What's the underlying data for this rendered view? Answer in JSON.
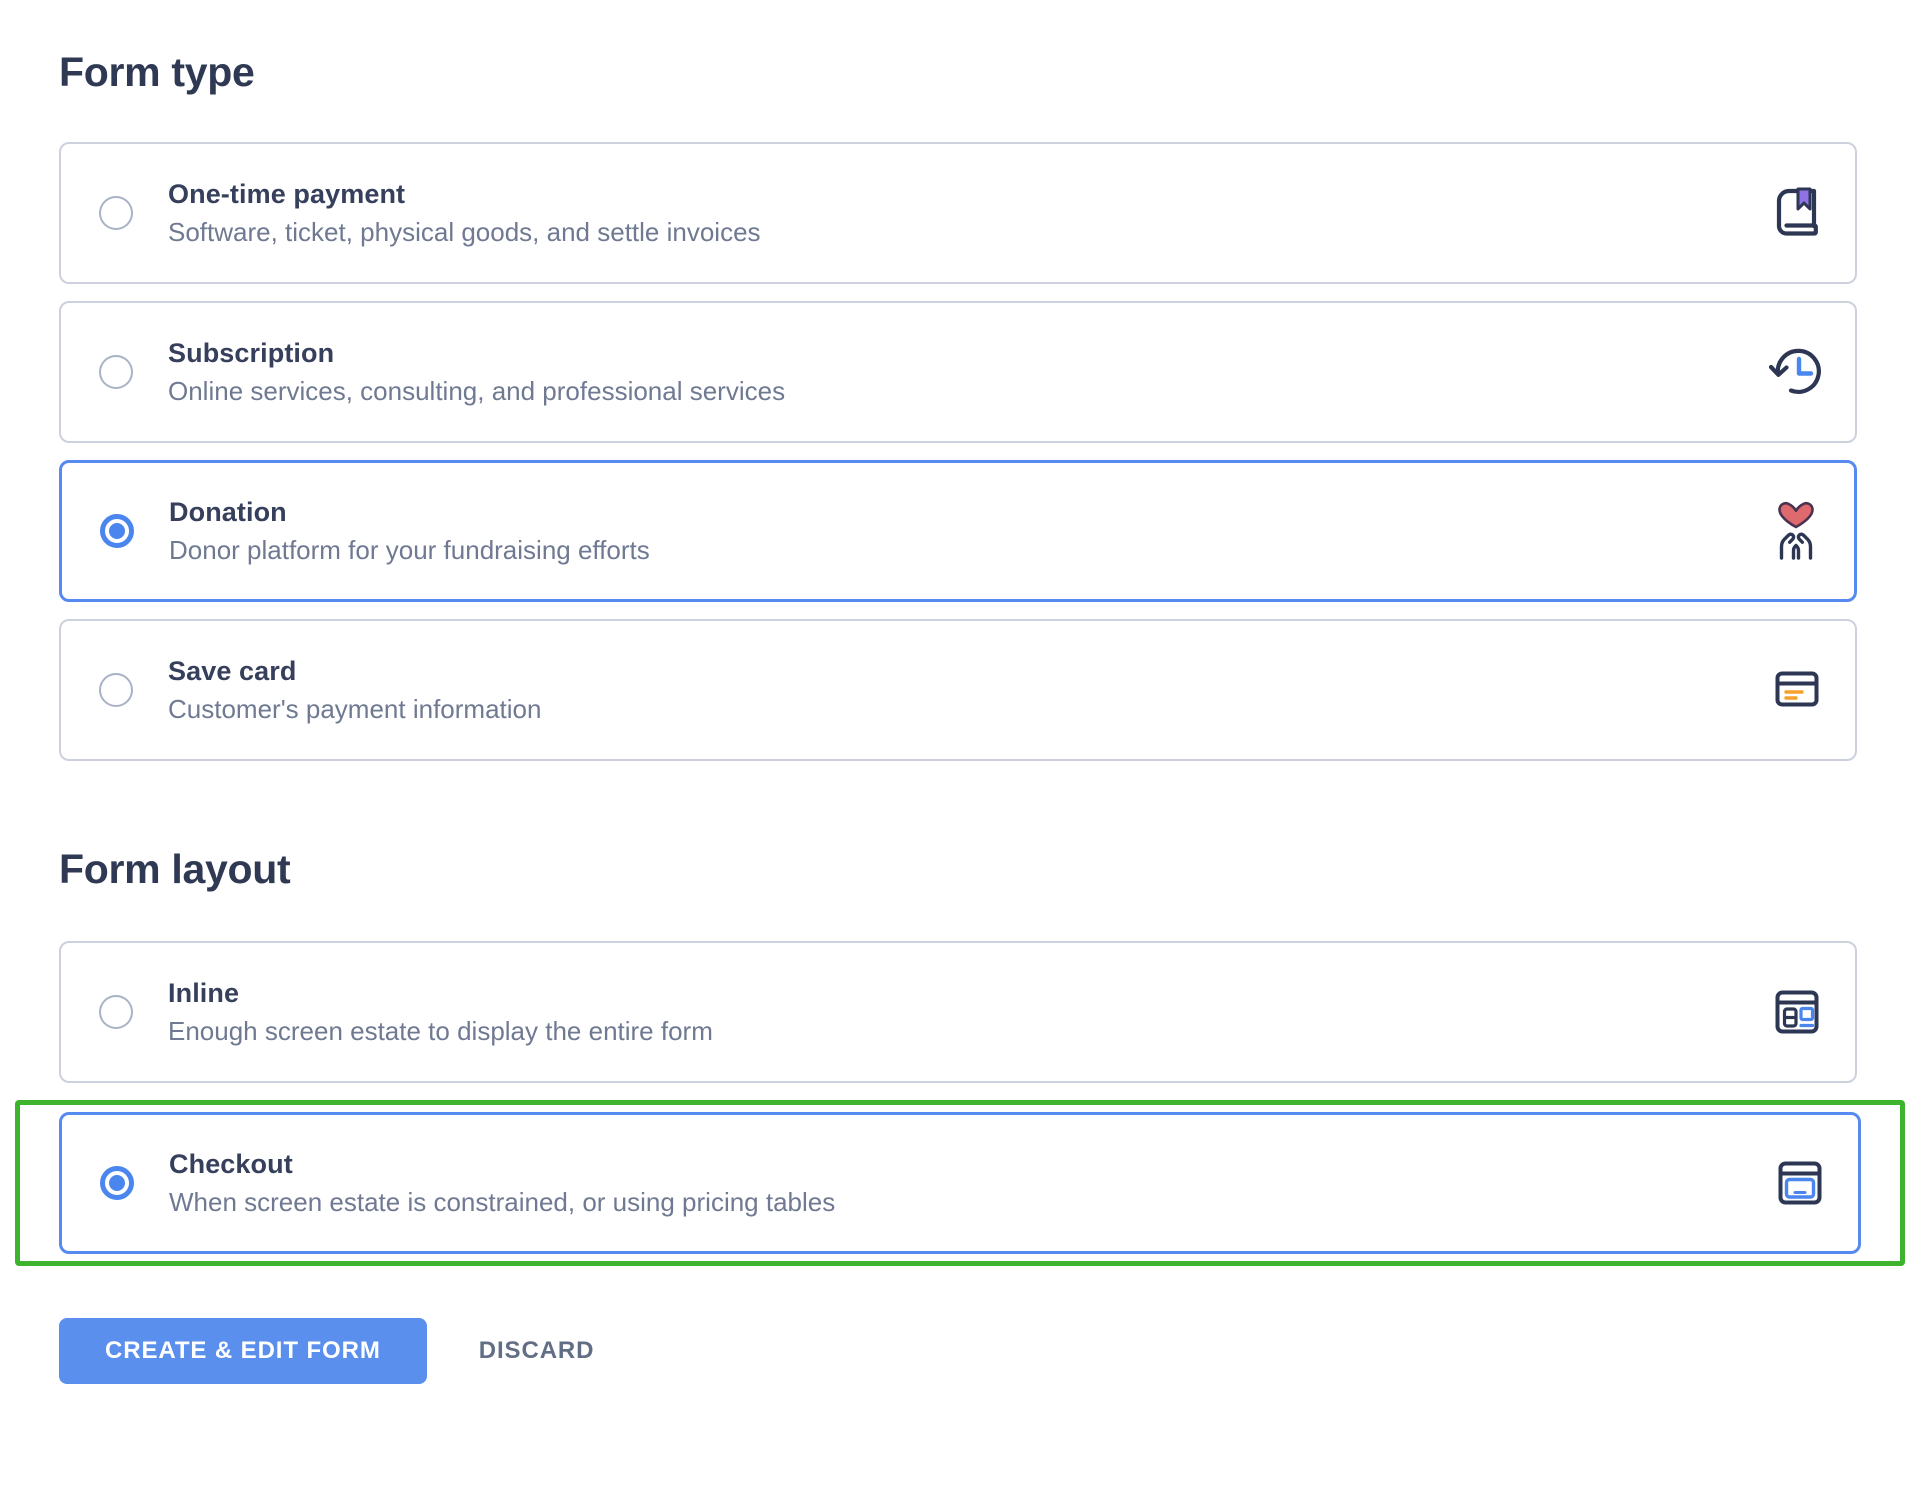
{
  "colors": {
    "accent_blue": "#4a86ee",
    "selected_border_blue": "#568af0",
    "highlight_green": "#3db32e",
    "button_blue": "#5a8fee",
    "icon_navy": "#2d3754",
    "bookmark_purple": "#8f72e6",
    "heart_red": "#df6a6e",
    "heart_outline": "#4a3350",
    "card_orange": "#f5a12b",
    "card_border_gray": "#cdd1dd",
    "heading_text": "#2f3954",
    "title_text": "#363f5c",
    "description_text": "#6f7992"
  },
  "sections": [
    {
      "heading": "Form type",
      "options": [
        {
          "id": "one-time-payment",
          "title": "One-time payment",
          "description": "Software, ticket, physical goods, and settle invoices",
          "icon": "book-icon",
          "selected": false,
          "highlighted": false
        },
        {
          "id": "subscription",
          "title": "Subscription",
          "description": "Online services, consulting, and professional services",
          "icon": "history-clock-icon",
          "selected": false,
          "highlighted": false
        },
        {
          "id": "donation",
          "title": "Donation",
          "description": "Donor platform for your fundraising efforts",
          "icon": "heart-in-hands-icon",
          "selected": true,
          "highlighted": false
        },
        {
          "id": "save-card",
          "title": "Save card",
          "description": "Customer's payment information",
          "icon": "credit-card-icon",
          "selected": false,
          "highlighted": false
        }
      ]
    },
    {
      "heading": "Form layout",
      "options": [
        {
          "id": "inline",
          "title": "Inline",
          "description": "Enough screen estate to display the entire form",
          "icon": "inline-layout-icon",
          "selected": false,
          "highlighted": false
        },
        {
          "id": "checkout",
          "title": "Checkout",
          "description": "When screen estate is constrained, or using pricing tables",
          "icon": "checkout-layout-icon",
          "selected": true,
          "highlighted": true
        }
      ]
    }
  ],
  "actions": {
    "create_label": "CREATE & EDIT FORM",
    "discard_label": "DISCARD"
  }
}
